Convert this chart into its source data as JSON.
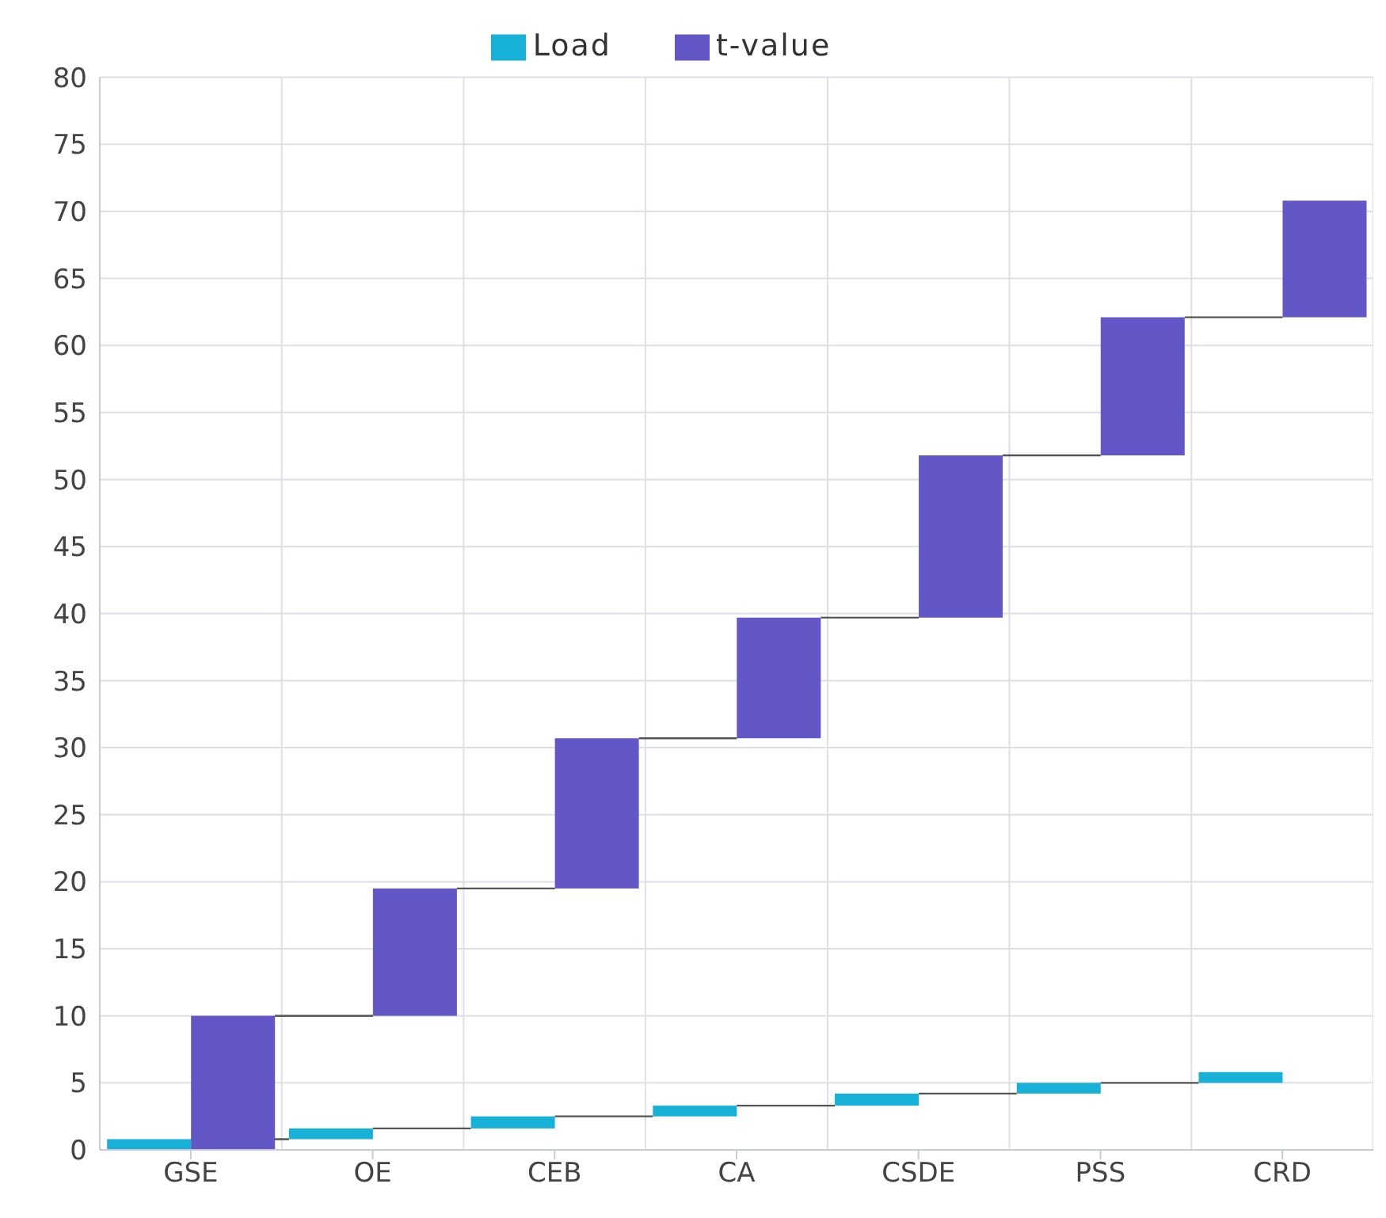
{
  "chart_data": {
    "type": "bar",
    "categories": [
      "GSE",
      "OE",
      "CEB",
      "CA",
      "CSDE",
      "PSS",
      "CRD"
    ],
    "series": [
      {
        "name": "Load",
        "color": "#17b1d8",
        "values": [
          0.8,
          0.8,
          0.9,
          0.8,
          0.9,
          0.8,
          0.8
        ],
        "base": [
          0,
          0.8,
          1.6,
          2.5,
          3.3,
          4.2,
          5.0
        ]
      },
      {
        "name": "t-value",
        "color": "#6356c6",
        "values": [
          10,
          9.5,
          11.2,
          9,
          12.1,
          10.3,
          8.7
        ],
        "base": [
          0,
          10,
          19.5,
          30.7,
          39.7,
          51.8,
          62.1
        ]
      }
    ],
    "ylim": [
      0,
      80
    ],
    "yticks": [
      0,
      5,
      10,
      15,
      20,
      25,
      30,
      35,
      40,
      45,
      50,
      55,
      60,
      65,
      70,
      75,
      80
    ],
    "grid": true,
    "legend": "top"
  }
}
